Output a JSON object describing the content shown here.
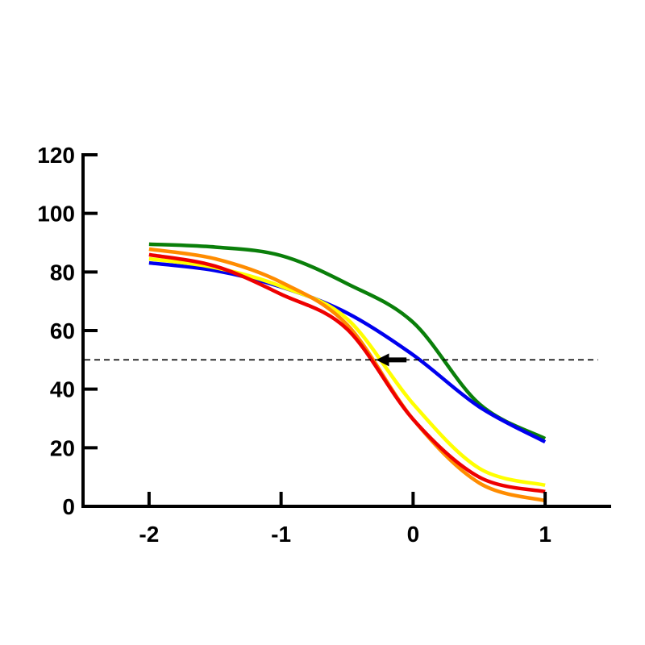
{
  "chart_data": {
    "type": "line",
    "title": "",
    "xlabel": "",
    "ylabel": "",
    "xlim": [
      -2.5,
      1.5
    ],
    "ylim": [
      0,
      120
    ],
    "x_ticks": [
      -2,
      -1,
      0,
      1
    ],
    "x_tick_labels": [
      "-2",
      "-1",
      "0",
      "1"
    ],
    "y_ticks": [
      0,
      20,
      40,
      60,
      80,
      100,
      120
    ],
    "y_tick_labels": [
      "0",
      "20",
      "40",
      "60",
      "80",
      "100",
      "120"
    ],
    "grid": false,
    "legend": null,
    "x": [
      -2,
      -1.5,
      -1,
      -0.5,
      0,
      0.5,
      1
    ],
    "series": [
      {
        "name": "green",
        "color": "#0a7f0a",
        "values": [
          89.5,
          88.5,
          85.6,
          76,
          62.8,
          35,
          23.1
        ]
      },
      {
        "name": "blue",
        "color": "#0000ee",
        "values": [
          83.1,
          80.5,
          74.9,
          66,
          51.7,
          34,
          22
        ]
      },
      {
        "name": "yellow",
        "color": "#ffff00",
        "values": [
          84.5,
          81.5,
          75.1,
          64,
          35,
          13,
          7.2
        ]
      },
      {
        "name": "orange",
        "color": "#ff8c00",
        "values": [
          87.8,
          84.5,
          76.5,
          62,
          29.7,
          8,
          1.9
        ]
      },
      {
        "name": "red",
        "color": "#ee0000",
        "values": [
          85.9,
          82,
          72.4,
          60.5,
          29.7,
          10,
          5
        ]
      }
    ],
    "annotations": [
      {
        "type": "hline",
        "y": 50,
        "style": "dashed",
        "color": "#000000",
        "x_from": -2.5,
        "x_to": 1.4
      },
      {
        "type": "arrow",
        "from": [
          -0.05,
          50
        ],
        "to": [
          -0.28,
          50
        ],
        "color": "#000000"
      }
    ]
  }
}
